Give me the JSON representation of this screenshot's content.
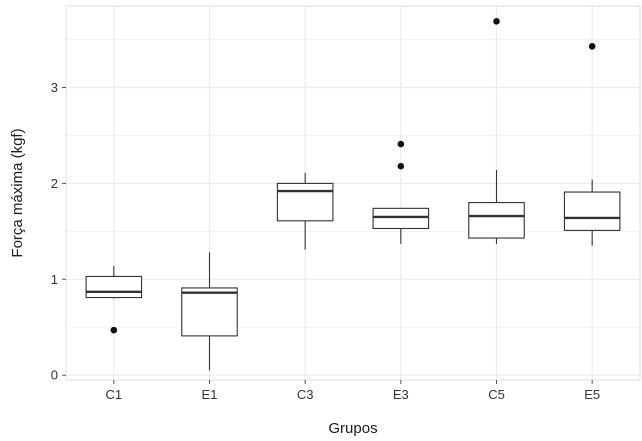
{
  "chart_data": {
    "type": "boxplot",
    "title": "",
    "xlabel": "Grupos",
    "ylabel": "Força máxima (kgf)",
    "categories": [
      "C1",
      "E1",
      "C3",
      "E3",
      "C5",
      "E5"
    ],
    "ylim": [
      -0.05,
      3.85
    ],
    "yticks": [
      0,
      1,
      2,
      3
    ],
    "grid": true,
    "legend": "none",
    "box_fill": "#ffffff",
    "box_stroke": "#333333",
    "outlier_color": "#111111",
    "panel_background": "#ffffff",
    "gridline_color": "#ebebeb",
    "boxes": [
      {
        "category": "C1",
        "whisker_low": 0.8,
        "q1": 0.81,
        "median": 0.87,
        "q3": 1.03,
        "whisker_high": 1.14,
        "outliers": [
          0.47
        ]
      },
      {
        "category": "E1",
        "whisker_low": 0.05,
        "q1": 0.41,
        "median": 0.86,
        "q3": 0.91,
        "whisker_high": 1.28,
        "outliers": []
      },
      {
        "category": "C3",
        "whisker_low": 1.31,
        "q1": 1.61,
        "median": 1.92,
        "q3": 2.0,
        "whisker_high": 2.11,
        "outliers": []
      },
      {
        "category": "E3",
        "whisker_low": 1.37,
        "q1": 1.53,
        "median": 1.65,
        "q3": 1.74,
        "whisker_high": 1.74,
        "outliers": [
          2.18,
          2.41
        ]
      },
      {
        "category": "C5",
        "whisker_low": 1.37,
        "q1": 1.43,
        "median": 1.66,
        "q3": 1.8,
        "whisker_high": 2.14,
        "outliers": [
          3.69
        ]
      },
      {
        "category": "E5",
        "whisker_low": 1.35,
        "q1": 1.51,
        "median": 1.64,
        "q3": 1.91,
        "whisker_high": 2.04,
        "outliers": [
          3.43
        ]
      }
    ]
  }
}
